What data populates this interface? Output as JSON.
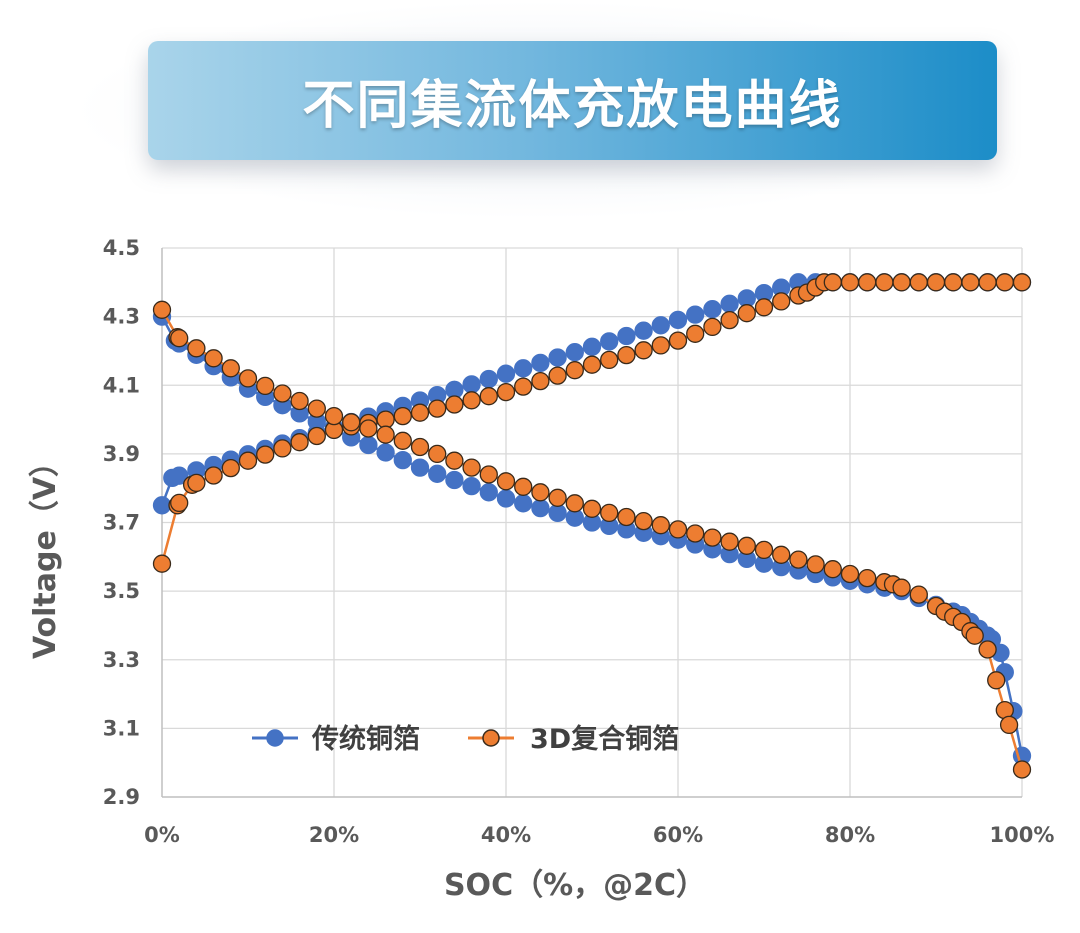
{
  "banner": {
    "title": "不同集流体充放电曲线"
  },
  "chart_data": {
    "type": "scatter",
    "xlabel": "SOC（%，@2C）",
    "ylabel": "Voltage（V）",
    "xlim": [
      0,
      100
    ],
    "ylim": [
      2.9,
      4.5
    ],
    "x_ticks": [
      "0%",
      "20%",
      "40%",
      "60%",
      "80%",
      "100%"
    ],
    "y_ticks": [
      "2.9",
      "3.1",
      "3.3",
      "3.5",
      "3.7",
      "3.9",
      "4.1",
      "4.3",
      "4.5"
    ],
    "grid": true,
    "legend_position": "bottom-left",
    "colors": {
      "传统铜箔": "#4472C4",
      "3D复合铜箔": "#ED7D31"
    },
    "series": [
      {
        "name": "传统铜箔",
        "color": "#4472C4",
        "marker_stroke": "#4472C4",
        "charge": [
          [
            0,
            3.75
          ],
          [
            1.2,
            3.83
          ],
          [
            74,
            4.4
          ],
          [
            76,
            4.4
          ],
          [
            100,
            4.4
          ]
        ],
        "discharge": [
          [
            0,
            4.3
          ],
          [
            1.5,
            4.23
          ],
          [
            10,
            4.09
          ],
          [
            20,
            3.97
          ],
          [
            30,
            3.86
          ],
          [
            40,
            3.77
          ],
          [
            50,
            3.7
          ],
          [
            60,
            3.65
          ],
          [
            70,
            3.58
          ],
          [
            80,
            3.53
          ],
          [
            86,
            3.5
          ],
          [
            90,
            3.46
          ],
          [
            93,
            3.43
          ],
          [
            95,
            3.39
          ],
          [
            96.5,
            3.36
          ],
          [
            97.5,
            3.32
          ],
          [
            99,
            3.15
          ],
          [
            100,
            3.02
          ]
        ]
      },
      {
        "name": "3D复合铜箔",
        "color": "#ED7D31",
        "marker_stroke": "#3a2a1a",
        "charge": [
          [
            0,
            3.58
          ],
          [
            1.8,
            3.75
          ],
          [
            3.5,
            3.81
          ],
          [
            10,
            3.88
          ],
          [
            20,
            3.97
          ],
          [
            30,
            4.02
          ],
          [
            40,
            4.08
          ],
          [
            50,
            4.16
          ],
          [
            60,
            4.23
          ],
          [
            68,
            4.31
          ],
          [
            75,
            4.37
          ],
          [
            77,
            4.4
          ],
          [
            100,
            4.4
          ]
        ],
        "discharge": [
          [
            0,
            4.32
          ],
          [
            1.8,
            4.24
          ],
          [
            10,
            4.12
          ],
          [
            20,
            4.01
          ],
          [
            30,
            3.92
          ],
          [
            40,
            3.82
          ],
          [
            50,
            3.74
          ],
          [
            60,
            3.68
          ],
          [
            70,
            3.62
          ],
          [
            80,
            3.55
          ],
          [
            85,
            3.52
          ],
          [
            88,
            3.49
          ],
          [
            91,
            3.44
          ],
          [
            93,
            3.41
          ],
          [
            94.5,
            3.37
          ],
          [
            96,
            3.33
          ],
          [
            97,
            3.24
          ],
          [
            98.5,
            3.11
          ],
          [
            100,
            2.98
          ]
        ]
      }
    ]
  }
}
